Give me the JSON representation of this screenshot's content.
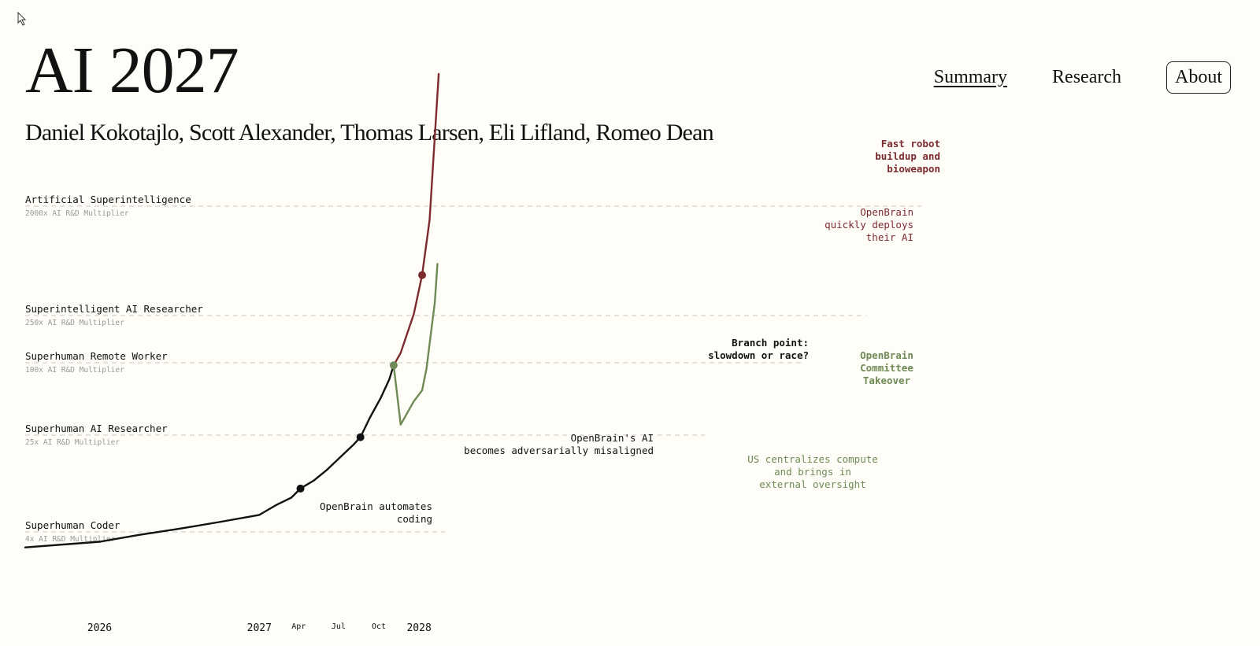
{
  "header": {
    "title": "AI 2027",
    "authors": "Daniel Kokotajlo, Scott Alexander, Thomas Larsen, Eli Lifland, Romeo Dean",
    "nav": [
      {
        "label": "Summary",
        "active": true
      },
      {
        "label": "Research",
        "active": false
      },
      {
        "label": "About",
        "active": false
      }
    ]
  },
  "colors": {
    "background": "#fffdf7",
    "main_line": "#111111",
    "race": "#7d2a2f",
    "slowdown": "#6e8a55",
    "level_line": "#d5d2c8",
    "muted_text": "#9a9a9a"
  },
  "chart_data": {
    "type": "line",
    "y_scale": "log",
    "ylabel": "AI R&D Multiplier",
    "x_ticks": [
      {
        "label": "2026",
        "date": "2026-01",
        "major": true
      },
      {
        "label": "2027",
        "date": "2027-01",
        "major": true
      },
      {
        "label": "Apr",
        "date": "2027-04",
        "major": false
      },
      {
        "label": "Jul",
        "date": "2027-07",
        "major": false
      },
      {
        "label": "Oct",
        "date": "2027-10",
        "major": false
      },
      {
        "label": "2028",
        "date": "2028-01",
        "major": true
      }
    ],
    "levels": [
      {
        "name": "Artificial Superintelligence",
        "sub": "2000x AI R&D Multiplier",
        "multiplier": 2000
      },
      {
        "name": "Superintelligent AI Researcher",
        "sub": "250x AI R&D Multiplier",
        "multiplier": 250
      },
      {
        "name": "Superhuman Remote Worker",
        "sub": "100x AI R&D Multiplier",
        "multiplier": 100
      },
      {
        "name": "Superhuman AI Researcher",
        "sub": "25x AI R&D Multiplier",
        "multiplier": 25
      },
      {
        "name": "Superhuman Coder",
        "sub": "4x AI R&D Multiplier",
        "multiplier": 4
      }
    ],
    "series": [
      {
        "key": "main",
        "color": "#111111",
        "points": [
          [
            "2025-07-15",
            1.4
          ],
          [
            "2026-01-01",
            1.55
          ],
          [
            "2026-04-01",
            1.75
          ],
          [
            "2026-07-01",
            1.95
          ],
          [
            "2026-10-01",
            2.2
          ],
          [
            "2027-01-01",
            2.5
          ],
          [
            "2027-02-10",
            3.0
          ],
          [
            "2027-03-15",
            3.4
          ],
          [
            "2027-04-05",
            4.0
          ],
          [
            "2027-05-05",
            4.6
          ],
          [
            "2027-06-05",
            5.6
          ],
          [
            "2027-07-05",
            7.0
          ],
          [
            "2027-08-05",
            8.8
          ],
          [
            "2027-08-20",
            10.0
          ],
          [
            "2027-09-10",
            14
          ],
          [
            "2027-10-05",
            20
          ],
          [
            "2027-10-25",
            28
          ],
          [
            "2027-11-04",
            36
          ]
        ]
      },
      {
        "name": "Race",
        "key": "race",
        "color": "#7d2a2f",
        "points": [
          [
            "2027-11-04",
            36
          ],
          [
            "2027-11-20",
            45
          ],
          [
            "2027-12-20",
            90
          ],
          [
            "2028-01-08",
            180
          ],
          [
            "2028-01-25",
            480
          ],
          [
            "2028-02-15",
            6500
          ]
        ]
      },
      {
        "name": "Slowdown",
        "key": "slowdown",
        "color": "#6e8a55",
        "points": [
          [
            "2027-11-04",
            36
          ],
          [
            "2027-11-20",
            12.5
          ],
          [
            "2027-12-20",
            19
          ],
          [
            "2028-01-08",
            23
          ],
          [
            "2028-01-18",
            34
          ],
          [
            "2028-02-06",
            110
          ],
          [
            "2028-02-12",
            220
          ]
        ]
      }
    ],
    "milestones": [
      {
        "date": "2027-04-05",
        "value": 4.0,
        "series": "main",
        "label": [
          "OpenBrain automates",
          "coding"
        ]
      },
      {
        "date": "2027-08-20",
        "value": 10.0,
        "series": "main",
        "label": [
          "OpenBrain's AI",
          "becomes adversarially misaligned"
        ]
      },
      {
        "date": "2027-11-04",
        "value": 36,
        "series": "slowdown",
        "label": [
          "Branch point:",
          "slowdown or race?"
        ]
      },
      {
        "date": "2028-01-08",
        "value": 180,
        "series": "race",
        "label": [
          "OpenBrain",
          "quickly deploys",
          "their AI"
        ]
      }
    ],
    "annotations": [
      {
        "series": "race",
        "label": [
          "Fast robot",
          "buildup and",
          "bioweapon"
        ]
      },
      {
        "series": "slowdown",
        "label": [
          "OpenBrain",
          "Committee",
          "Takeover"
        ]
      },
      {
        "series": "slowdown",
        "label": [
          "US centralizes compute",
          "and brings in",
          "external oversight"
        ]
      }
    ]
  }
}
